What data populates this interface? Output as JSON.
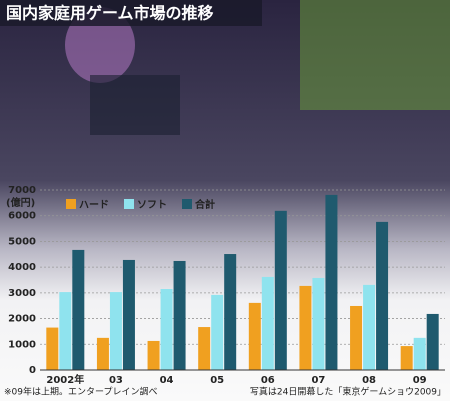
{
  "chart_data": {
    "type": "bar",
    "title": "国内家庭用ゲーム市場の推移",
    "y_label": "(億円)",
    "categories": [
      "2002年",
      "03",
      "04",
      "05",
      "06",
      "07",
      "08",
      "09"
    ],
    "series": [
      {
        "name": "ハード",
        "color": "#f0a020",
        "values": [
          1650,
          1250,
          1130,
          1670,
          2610,
          3270,
          2490,
          930
        ]
      },
      {
        "name": "ソフト",
        "color": "#8fe3ee",
        "values": [
          3030,
          3030,
          3150,
          2920,
          3620,
          3580,
          3310,
          1250
        ]
      },
      {
        "name": "合計",
        "color": "#1f5a6e",
        "values": [
          4670,
          4280,
          4240,
          4510,
          6190,
          6810,
          5760,
          2180
        ]
      }
    ],
    "ylim": [
      0,
      7000
    ],
    "yticks": [
      0,
      1000,
      2000,
      3000,
      4000,
      5000,
      6000,
      7000
    ],
    "grid": true,
    "notes": [
      "※09年は上期。エンタープレイン調べ",
      "写真は24日開幕した「東京ゲームショウ2009」"
    ]
  }
}
